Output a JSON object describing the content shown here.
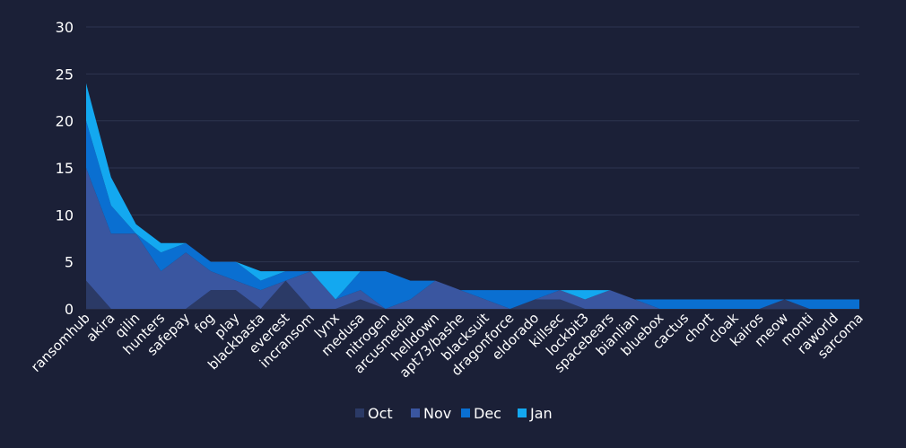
{
  "chart_data": {
    "type": "area",
    "stacked": true,
    "title": "",
    "xlabel": "",
    "ylabel": "",
    "ylim": [
      0,
      30
    ],
    "yticks": [
      0,
      5,
      10,
      15,
      20,
      25,
      30
    ],
    "grid": true,
    "legend_position": "bottom",
    "categories": [
      "ransomhub",
      "akira",
      "qilin",
      "hunters",
      "safepay",
      "fog",
      "play",
      "blackbasta",
      "everest",
      "incransom",
      "lynx",
      "medusa",
      "nitrogen",
      "arcusmedia",
      "helldown",
      "apt73/bashe",
      "blacksuit",
      "dragonforce",
      "eldorado",
      "killsec",
      "lockbit3",
      "spacebears",
      "bianlian",
      "bluebox",
      "cactus",
      "chort",
      "cloak",
      "kairos",
      "meow",
      "monti",
      "raworld",
      "sarcoma"
    ],
    "series": [
      {
        "name": "Oct",
        "color": "#2b3a66",
        "values": [
          3,
          0,
          0,
          0,
          0,
          2,
          2,
          0,
          3,
          0,
          0,
          1,
          0,
          0,
          0,
          0,
          0,
          0,
          1,
          1,
          0,
          0,
          0,
          0,
          0,
          0,
          0,
          0,
          1,
          0,
          0,
          0
        ]
      },
      {
        "name": "Nov",
        "color": "#3a56a0",
        "values": [
          12,
          8,
          8,
          4,
          6,
          2,
          1,
          2,
          0,
          4,
          1,
          1,
          0,
          1,
          3,
          2,
          1,
          0,
          0,
          1,
          1,
          2,
          1,
          0,
          0,
          0,
          0,
          0,
          0,
          0,
          0,
          0
        ]
      },
      {
        "name": "Dec",
        "color": "#0a6fd1",
        "values": [
          5,
          3,
          0,
          2,
          1,
          1,
          2,
          1,
          1,
          0,
          0,
          2,
          4,
          2,
          0,
          0,
          1,
          2,
          1,
          0,
          0,
          0,
          0,
          1,
          1,
          1,
          1,
          1,
          0,
          1,
          1,
          1
        ]
      },
      {
        "name": "Jan",
        "color": "#13a8f0",
        "values": [
          4,
          3,
          1,
          1,
          0,
          0,
          0,
          1,
          0,
          0,
          3,
          0,
          0,
          0,
          0,
          0,
          0,
          0,
          0,
          0,
          1,
          0,
          0,
          0,
          0,
          0,
          0,
          0,
          0,
          0,
          0,
          0
        ]
      }
    ]
  },
  "colors": {
    "background": "#1b2037",
    "grid": "#2e3550",
    "text": "#ffffff"
  }
}
